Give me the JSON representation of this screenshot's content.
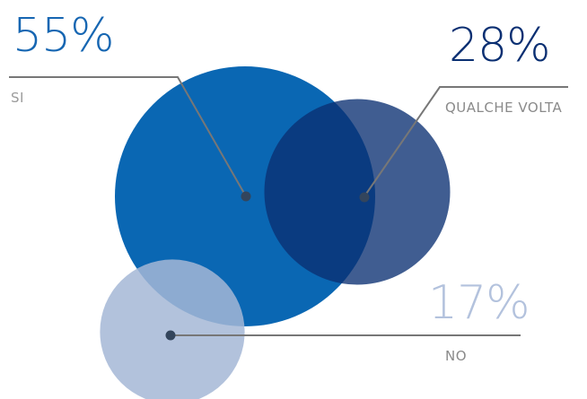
{
  "chart_data": {
    "type": "bubble",
    "series": [
      {
        "category": "SI",
        "value": 55,
        "value_label": "55%",
        "color": "#0a67b3",
        "opacity": 1.0
      },
      {
        "category": "QUALCHE VOLTA",
        "value": 28,
        "value_label": "28%",
        "color": "#0a2f72",
        "opacity": 0.78
      },
      {
        "category": "NO",
        "value": 17,
        "value_label": "17%",
        "color": "#a4b7d6",
        "opacity": 0.85
      }
    ],
    "colors": {
      "text_si": "#1666b2",
      "text_qualche": "#0a2f72",
      "text_no": "#b3c2dd",
      "label_si": "#9b9b9b",
      "label_qualche": "#8a8a8a",
      "label_no": "#8a8a8a",
      "leader_line": "#777777",
      "leader_dot": "#33455c"
    }
  }
}
